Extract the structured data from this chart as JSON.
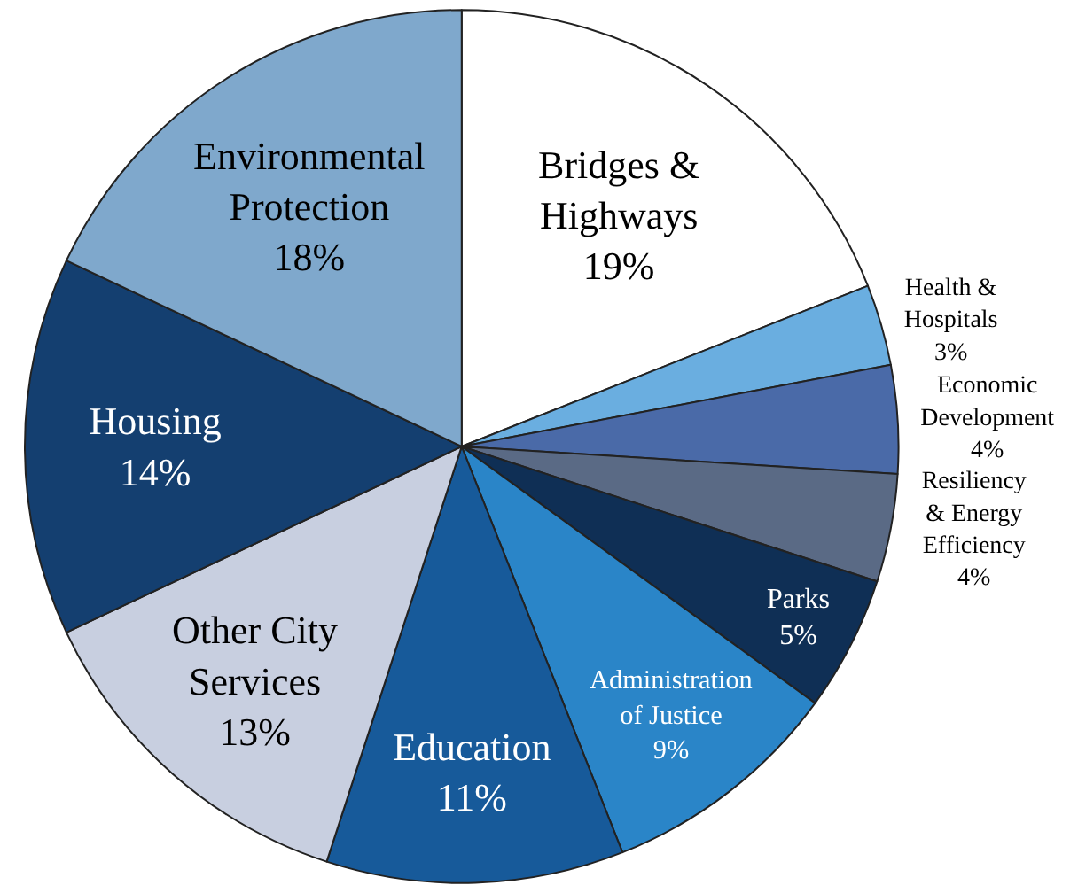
{
  "chart_data": {
    "type": "pie",
    "categories": [
      "Bridges & Highways",
      "Health & Hospitals",
      "Economic Development",
      "Resiliency & Energy Efficiency",
      "Parks",
      "Administration of Justice",
      "Education",
      "Other City Services",
      "Housing",
      "Environmental Protection"
    ],
    "values": [
      19,
      3,
      4,
      4,
      5,
      9,
      11,
      13,
      14,
      18
    ],
    "value_labels": [
      "19%",
      "3%",
      "4%",
      "4%",
      "5%",
      "9%",
      "11%",
      "13%",
      "14%",
      "18%"
    ],
    "colors": [
      "#ffffff",
      "#6aaee0",
      "#4a6aa8",
      "#5a6a85",
      "#0f2f55",
      "#2a85c8",
      "#175a9a",
      "#c8cfe0",
      "#143f70",
      "#7fa8cc"
    ],
    "legend": false
  }
}
